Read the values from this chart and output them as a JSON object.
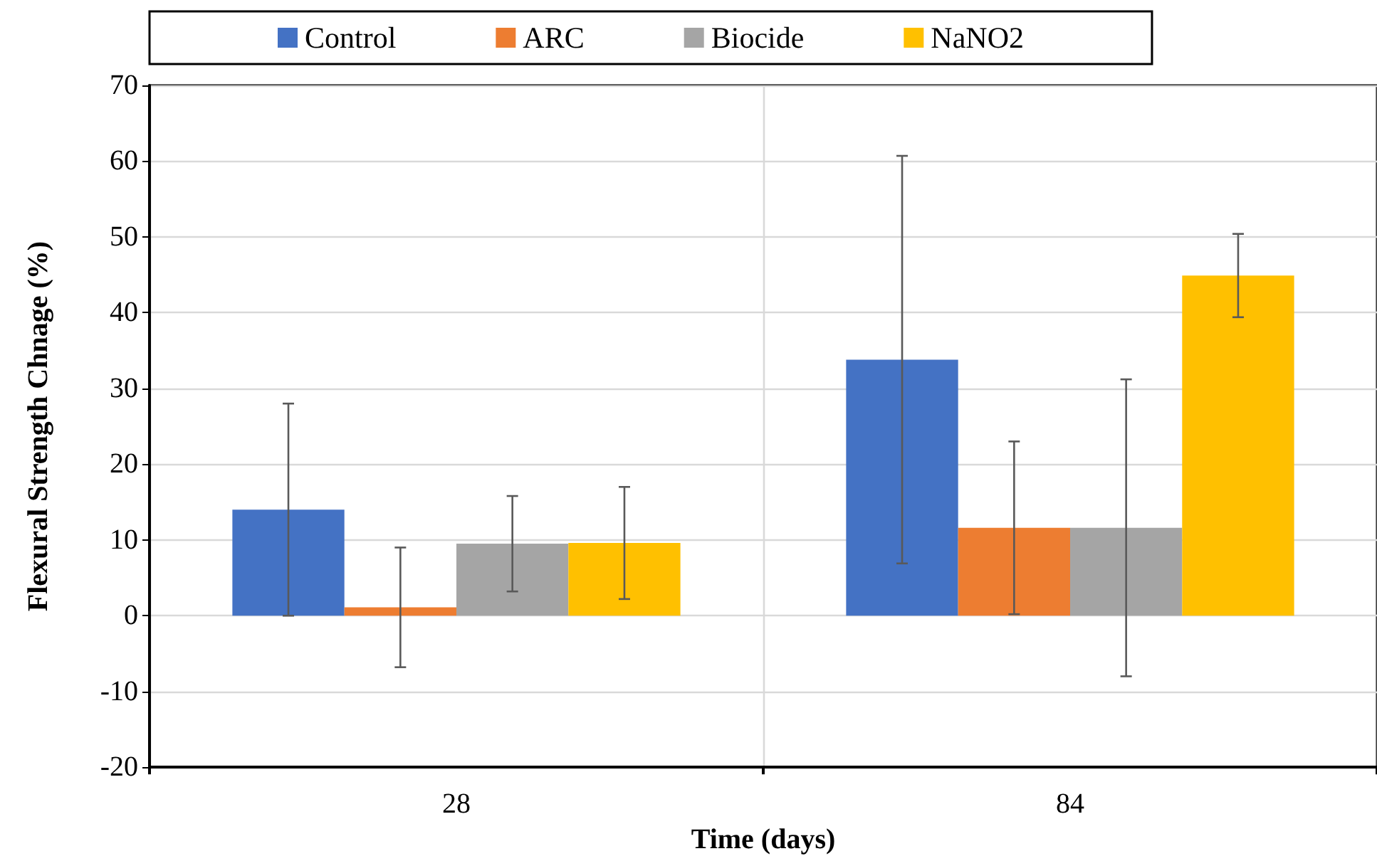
{
  "chart_data": {
    "type": "bar",
    "xlabel": "Time (days)",
    "ylabel": "Flexural Strength Chnage (%)",
    "categories": [
      "28",
      "84"
    ],
    "series": [
      {
        "name": "Control",
        "color": "#4472c4",
        "values": [
          14.0,
          33.8
        ],
        "errors": [
          14.0,
          26.9
        ]
      },
      {
        "name": "ARC",
        "color": "#ed7d31",
        "values": [
          1.1,
          11.6
        ],
        "errors": [
          7.9,
          11.4
        ]
      },
      {
        "name": "Biocide",
        "color": "#a5a5a5",
        "values": [
          9.5,
          11.6
        ],
        "errors": [
          6.3,
          19.6
        ]
      },
      {
        "name": "NaNO2",
        "color": "#ffc000",
        "values": [
          9.6,
          44.9
        ],
        "errors": [
          7.4,
          5.5
        ]
      }
    ],
    "ylim": [
      -20,
      70
    ],
    "yticks": [
      -20,
      -10,
      0,
      10,
      20,
      30,
      40,
      50,
      60,
      70
    ],
    "grid": true,
    "legend": "top"
  }
}
